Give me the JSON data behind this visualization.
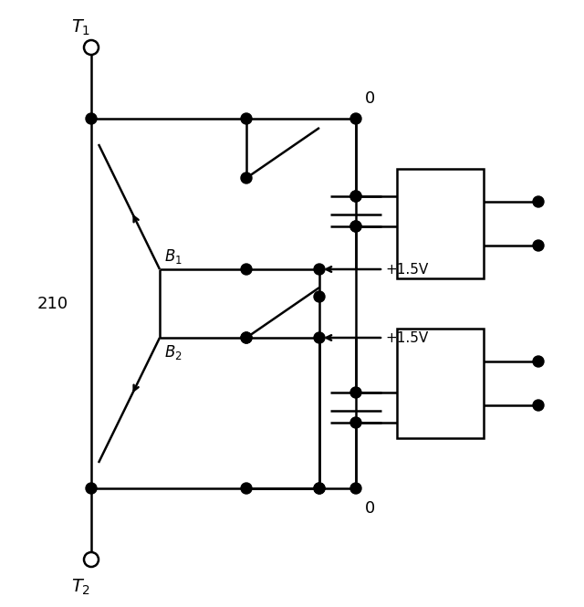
{
  "background_color": "#ffffff",
  "line_color": "#000000",
  "dot_color": "#000000",
  "lw": 1.8,
  "fig_width": 6.4,
  "fig_height": 6.65,
  "dpi": 100
}
